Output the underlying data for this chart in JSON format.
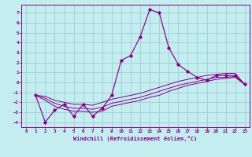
{
  "xlabel": "Windchill (Refroidissement éolien,°C)",
  "xlim": [
    -0.5,
    23.5
  ],
  "ylim": [
    -4.5,
    7.8
  ],
  "yticks": [
    7,
    6,
    5,
    4,
    3,
    2,
    1,
    0,
    -1,
    -2,
    -3,
    -4
  ],
  "xticks": [
    0,
    1,
    2,
    3,
    4,
    5,
    6,
    7,
    8,
    9,
    10,
    11,
    12,
    13,
    14,
    15,
    16,
    17,
    18,
    19,
    20,
    21,
    22,
    23
  ],
  "background_color": "#c4edf0",
  "grid_color": "#9ecdd4",
  "line_color": "#880088",
  "series": [
    [
      null,
      -1.3,
      -4.0,
      -2.8,
      -2.2,
      -3.4,
      -2.2,
      -3.4,
      -2.6,
      -1.3,
      2.2,
      2.7,
      4.6,
      7.3,
      7.0,
      3.5,
      1.8,
      1.1,
      0.5,
      0.2,
      0.7,
      0.7,
      0.7,
      -0.2
    ],
    [
      null,
      -1.3,
      -1.8,
      -2.4,
      -2.7,
      -2.9,
      -2.9,
      -3.0,
      -2.9,
      -2.4,
      -2.2,
      -2.0,
      -1.8,
      -1.5,
      -1.3,
      -0.9,
      -0.6,
      -0.3,
      -0.1,
      0.1,
      0.3,
      0.4,
      0.5,
      -0.2
    ],
    [
      null,
      -1.3,
      -1.6,
      -2.1,
      -2.4,
      -2.6,
      -2.6,
      -2.7,
      -2.5,
      -2.1,
      -1.9,
      -1.7,
      -1.5,
      -1.2,
      -0.9,
      -0.6,
      -0.3,
      -0.1,
      0.1,
      0.3,
      0.5,
      0.5,
      0.6,
      -0.2
    ],
    [
      null,
      -1.3,
      -1.4,
      -1.8,
      -2.0,
      -2.2,
      -2.2,
      -2.3,
      -2.0,
      -1.7,
      -1.5,
      -1.3,
      -1.1,
      -0.8,
      -0.5,
      -0.2,
      0.1,
      0.3,
      0.5,
      0.7,
      0.8,
      0.9,
      0.9,
      -0.2
    ]
  ]
}
